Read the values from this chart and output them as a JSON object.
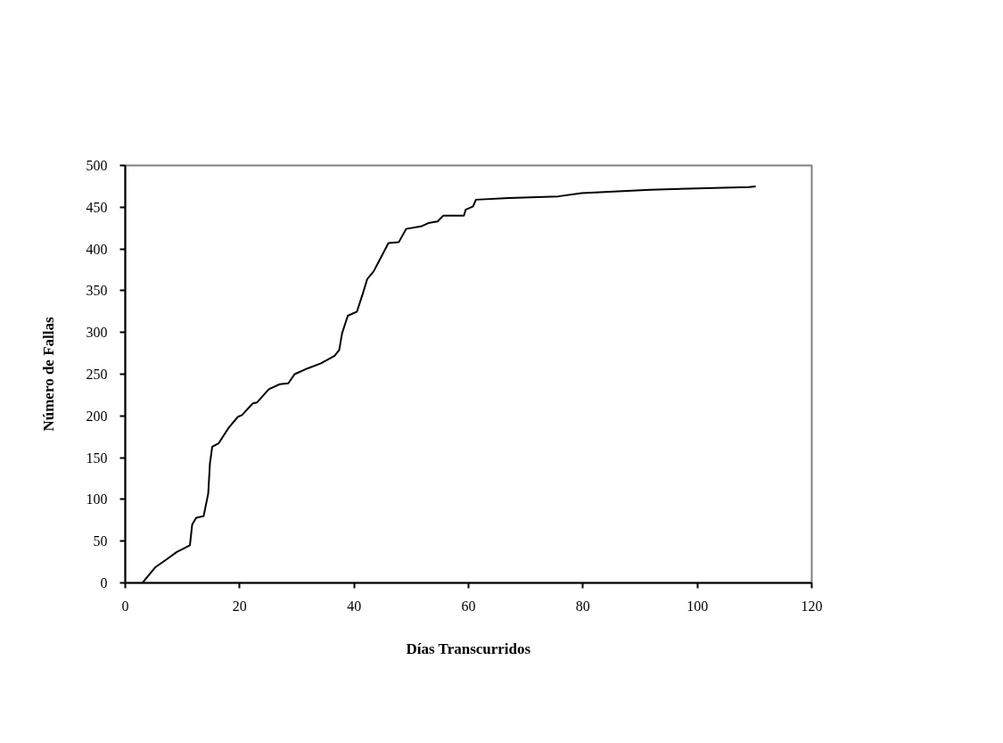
{
  "chart_data": {
    "type": "line",
    "xlabel": "Días Transcurridos",
    "ylabel": "Número de Fallas",
    "x": [
      3,
      5.3,
      7.2,
      9.0,
      11.3,
      11.7,
      12.4,
      13.7,
      14.5,
      14.8,
      15.2,
      16.3,
      18.1,
      19.7,
      20.4,
      22.3,
      23.0,
      25.1,
      27.0,
      28.5,
      29.6,
      31.9,
      34.2,
      36.6,
      37.4,
      37.9,
      38.9,
      40.5,
      41.5,
      42.3,
      43.4,
      44.4,
      46.0,
      47.8,
      49.1,
      51.7,
      53.0,
      54.6,
      55.6,
      59.2,
      59.5,
      60.8,
      61.3,
      67.1,
      75.7,
      79.8,
      91.8,
      109.0,
      110.2
    ],
    "series": [
      {
        "color": "#000000",
        "values": [
          0,
          19,
          28,
          37,
          45,
          70,
          78,
          80,
          107,
          143,
          163,
          167,
          186,
          199,
          201,
          215,
          216,
          232,
          238,
          239,
          250,
          257,
          263,
          272,
          279,
          299,
          320,
          325,
          346,
          364,
          373,
          386,
          407,
          408,
          424,
          427,
          431,
          433,
          440,
          440,
          447,
          451,
          459,
          461,
          463,
          467,
          471,
          474,
          475
        ]
      }
    ],
    "xlim": [
      0,
      120
    ],
    "xticks": [
      0,
      20,
      40,
      60,
      80,
      100,
      120
    ],
    "ylim": [
      0,
      500
    ],
    "yticks": [
      0,
      50,
      100,
      150,
      200,
      250,
      300,
      350,
      400,
      450,
      500
    ],
    "grid": false,
    "marker": "none",
    "line_style": "solid"
  }
}
